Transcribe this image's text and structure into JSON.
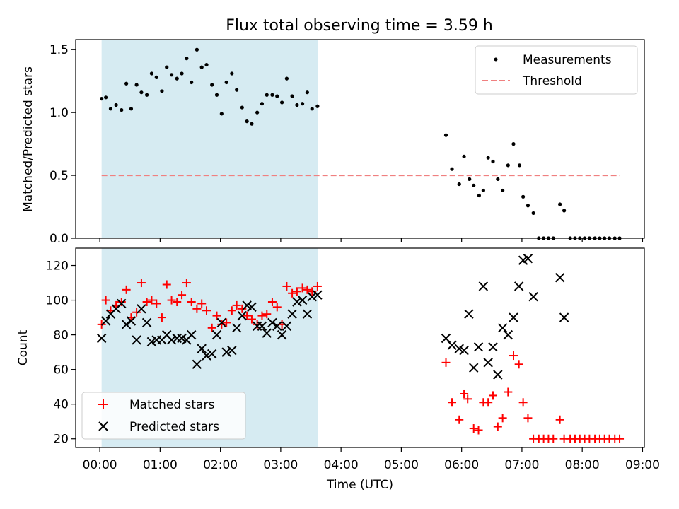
{
  "figure": {
    "title": "Flux total observing time = 3.59 h",
    "xlabel": "Time (UTC)"
  },
  "colors": {
    "shade": "#add8e6",
    "measurements": "#000000",
    "threshold": "#f08080",
    "matched": "#ff0000",
    "predicted": "#000000"
  },
  "chart_data": [
    {
      "type": "scatter",
      "ylabel": "Matched/Predicted stars",
      "xlim": [
        -0.4,
        9.03
      ],
      "ylim": [
        0,
        1.58
      ],
      "yticks": [
        0,
        0.5,
        1.0,
        1.5
      ],
      "ytick_labels": [
        "0.0",
        "0.5",
        "1.0",
        "1.5"
      ],
      "shaded_span": [
        0.03,
        3.62
      ],
      "legend": {
        "placement": "upper right",
        "entries": [
          "Measurements",
          "Threshold"
        ]
      },
      "threshold": {
        "name": "Threshold",
        "y": 0.5,
        "x": [
          0.03,
          8.62
        ]
      },
      "series": [
        {
          "name": "Measurements",
          "marker": "dot",
          "points": [
            [
              0.03,
              1.11
            ],
            [
              0.1,
              1.12
            ],
            [
              0.18,
              1.03
            ],
            [
              0.27,
              1.06
            ],
            [
              0.36,
              1.02
            ],
            [
              0.44,
              1.23
            ],
            [
              0.52,
              1.03
            ],
            [
              0.61,
              1.22
            ],
            [
              0.69,
              1.16
            ],
            [
              0.78,
              1.14
            ],
            [
              0.86,
              1.31
            ],
            [
              0.94,
              1.28
            ],
            [
              1.03,
              1.17
            ],
            [
              1.11,
              1.36
            ],
            [
              1.19,
              1.3
            ],
            [
              1.28,
              1.27
            ],
            [
              1.36,
              1.31
            ],
            [
              1.44,
              1.43
            ],
            [
              1.52,
              1.24
            ],
            [
              1.61,
              1.5
            ],
            [
              1.69,
              1.36
            ],
            [
              1.77,
              1.38
            ],
            [
              1.86,
              1.22
            ],
            [
              1.94,
              1.14
            ],
            [
              2.02,
              0.99
            ],
            [
              2.1,
              1.24
            ],
            [
              2.19,
              1.31
            ],
            [
              2.27,
              1.18
            ],
            [
              2.36,
              1.04
            ],
            [
              2.44,
              0.93
            ],
            [
              2.52,
              0.91
            ],
            [
              2.61,
              1.0
            ],
            [
              2.69,
              1.07
            ],
            [
              2.77,
              1.14
            ],
            [
              2.86,
              1.14
            ],
            [
              2.94,
              1.13
            ],
            [
              3.02,
              1.08
            ],
            [
              3.1,
              1.27
            ],
            [
              3.19,
              1.13
            ],
            [
              3.27,
              1.06
            ],
            [
              3.36,
              1.07
            ],
            [
              3.44,
              1.16
            ],
            [
              3.52,
              1.03
            ],
            [
              3.61,
              1.05
            ],
            [
              5.74,
              0.82
            ],
            [
              5.84,
              0.55
            ],
            [
              5.96,
              0.43
            ],
            [
              6.04,
              0.65
            ],
            [
              6.13,
              0.47
            ],
            [
              6.2,
              0.42
            ],
            [
              6.29,
              0.34
            ],
            [
              6.36,
              0.38
            ],
            [
              6.44,
              0.64
            ],
            [
              6.52,
              0.61
            ],
            [
              6.6,
              0.47
            ],
            [
              6.68,
              0.38
            ],
            [
              6.77,
              0.58
            ],
            [
              6.86,
              0.75
            ],
            [
              6.96,
              0.58
            ],
            [
              7.02,
              0.33
            ],
            [
              7.1,
              0.26
            ],
            [
              7.19,
              0.2
            ],
            [
              7.28,
              0.0
            ],
            [
              7.36,
              0.0
            ],
            [
              7.44,
              0.0
            ],
            [
              7.52,
              0.0
            ],
            [
              7.63,
              0.27
            ],
            [
              7.7,
              0.22
            ],
            [
              7.8,
              0.0
            ],
            [
              7.88,
              0.0
            ],
            [
              7.96,
              0.0
            ],
            [
              8.04,
              0.0
            ],
            [
              8.12,
              0.0
            ],
            [
              8.21,
              0.0
            ],
            [
              8.29,
              0.0
            ],
            [
              8.37,
              0.0
            ],
            [
              8.45,
              0.0
            ],
            [
              8.54,
              0.0
            ],
            [
              8.62,
              0.0
            ]
          ]
        }
      ]
    },
    {
      "type": "scatter",
      "ylabel": "Count",
      "xlim": [
        -0.4,
        9.03
      ],
      "ylim": [
        15,
        130
      ],
      "yticks": [
        20,
        40,
        60,
        80,
        100,
        120
      ],
      "ytick_labels": [
        "20",
        "40",
        "60",
        "80",
        "100",
        "120"
      ],
      "xticks": [
        0,
        1,
        2,
        3,
        4,
        5,
        6,
        7,
        8,
        9
      ],
      "xtick_labels": [
        "00:00",
        "01:00",
        "02:00",
        "03:00",
        "04:00",
        "05:00",
        "06:00",
        "07:00",
        "08:00",
        "09:00"
      ],
      "shaded_span": [
        0.03,
        3.62
      ],
      "legend": {
        "placement": "lower left",
        "entries": [
          "Matched stars",
          "Predicted stars"
        ]
      },
      "series": [
        {
          "name": "Matched stars",
          "marker": "plus",
          "points": [
            [
              0.03,
              86
            ],
            [
              0.1,
              100
            ],
            [
              0.18,
              94
            ],
            [
              0.27,
              97
            ],
            [
              0.36,
              99
            ],
            [
              0.44,
              106
            ],
            [
              0.52,
              90
            ],
            [
              0.61,
              93
            ],
            [
              0.69,
              110
            ],
            [
              0.78,
              99
            ],
            [
              0.86,
              100
            ],
            [
              0.94,
              98
            ],
            [
              1.03,
              90
            ],
            [
              1.11,
              109
            ],
            [
              1.19,
              100
            ],
            [
              1.28,
              99
            ],
            [
              1.36,
              103
            ],
            [
              1.44,
              110
            ],
            [
              1.52,
              99
            ],
            [
              1.61,
              95
            ],
            [
              1.69,
              98
            ],
            [
              1.77,
              94
            ],
            [
              1.86,
              84
            ],
            [
              1.94,
              91
            ],
            [
              2.02,
              86
            ],
            [
              2.1,
              87
            ],
            [
              2.19,
              94
            ],
            [
              2.27,
              97
            ],
            [
              2.36,
              95
            ],
            [
              2.44,
              91
            ],
            [
              2.52,
              89
            ],
            [
              2.61,
              86
            ],
            [
              2.69,
              91
            ],
            [
              2.77,
              92
            ],
            [
              2.86,
              99
            ],
            [
              2.94,
              96
            ],
            [
              3.02,
              86
            ],
            [
              3.1,
              108
            ],
            [
              3.19,
              104
            ],
            [
              3.27,
              105
            ],
            [
              3.36,
              107
            ],
            [
              3.44,
              106
            ],
            [
              3.52,
              105
            ],
            [
              3.61,
              108
            ],
            [
              5.74,
              64
            ],
            [
              5.84,
              41
            ],
            [
              5.96,
              31
            ],
            [
              6.04,
              46
            ],
            [
              6.1,
              43
            ],
            [
              6.2,
              26
            ],
            [
              6.28,
              25
            ],
            [
              6.36,
              41
            ],
            [
              6.44,
              41
            ],
            [
              6.52,
              45
            ],
            [
              6.6,
              27
            ],
            [
              6.68,
              32
            ],
            [
              6.77,
              47
            ],
            [
              6.86,
              68
            ],
            [
              6.95,
              63
            ],
            [
              7.02,
              41
            ],
            [
              7.1,
              32
            ],
            [
              7.19,
              20
            ],
            [
              7.28,
              20
            ],
            [
              7.36,
              20
            ],
            [
              7.44,
              20
            ],
            [
              7.52,
              20
            ],
            [
              7.63,
              31
            ],
            [
              7.7,
              20
            ],
            [
              7.8,
              20
            ],
            [
              7.88,
              20
            ],
            [
              7.96,
              20
            ],
            [
              8.04,
              20
            ],
            [
              8.12,
              20
            ],
            [
              8.21,
              20
            ],
            [
              8.29,
              20
            ],
            [
              8.37,
              20
            ],
            [
              8.45,
              20
            ],
            [
              8.54,
              20
            ],
            [
              8.62,
              20
            ]
          ]
        },
        {
          "name": "Predicted stars",
          "marker": "x",
          "points": [
            [
              0.03,
              78
            ],
            [
              0.1,
              88
            ],
            [
              0.18,
              92
            ],
            [
              0.27,
              95
            ],
            [
              0.36,
              98
            ],
            [
              0.44,
              86
            ],
            [
              0.52,
              88
            ],
            [
              0.61,
              77
            ],
            [
              0.69,
              95
            ],
            [
              0.78,
              87
            ],
            [
              0.86,
              76
            ],
            [
              0.94,
              77
            ],
            [
              1.03,
              77
            ],
            [
              1.11,
              80
            ],
            [
              1.19,
              77
            ],
            [
              1.28,
              78
            ],
            [
              1.36,
              78
            ],
            [
              1.44,
              77
            ],
            [
              1.52,
              80
            ],
            [
              1.61,
              63
            ],
            [
              1.69,
              72
            ],
            [
              1.77,
              68
            ],
            [
              1.86,
              69
            ],
            [
              1.94,
              80
            ],
            [
              2.02,
              87
            ],
            [
              2.1,
              70
            ],
            [
              2.19,
              71
            ],
            [
              2.27,
              84
            ],
            [
              2.36,
              91
            ],
            [
              2.44,
              97
            ],
            [
              2.52,
              96
            ],
            [
              2.61,
              85
            ],
            [
              2.69,
              85
            ],
            [
              2.77,
              81
            ],
            [
              2.86,
              87
            ],
            [
              2.94,
              85
            ],
            [
              3.02,
              80
            ],
            [
              3.1,
              85
            ],
            [
              3.19,
              92
            ],
            [
              3.27,
              99
            ],
            [
              3.36,
              100
            ],
            [
              3.44,
              92
            ],
            [
              3.52,
              102
            ],
            [
              3.61,
              103
            ],
            [
              5.74,
              78
            ],
            [
              5.84,
              74
            ],
            [
              5.96,
              72
            ],
            [
              6.04,
              71
            ],
            [
              6.12,
              92
            ],
            [
              6.2,
              61
            ],
            [
              6.28,
              73
            ],
            [
              6.36,
              108
            ],
            [
              6.44,
              64
            ],
            [
              6.52,
              73
            ],
            [
              6.6,
              57
            ],
            [
              6.68,
              84
            ],
            [
              6.77,
              80
            ],
            [
              6.86,
              90
            ],
            [
              6.95,
              108
            ],
            [
              7.02,
              123
            ],
            [
              7.1,
              124
            ],
            [
              7.19,
              102
            ],
            [
              7.63,
              113
            ],
            [
              7.7,
              90
            ]
          ]
        }
      ]
    }
  ]
}
